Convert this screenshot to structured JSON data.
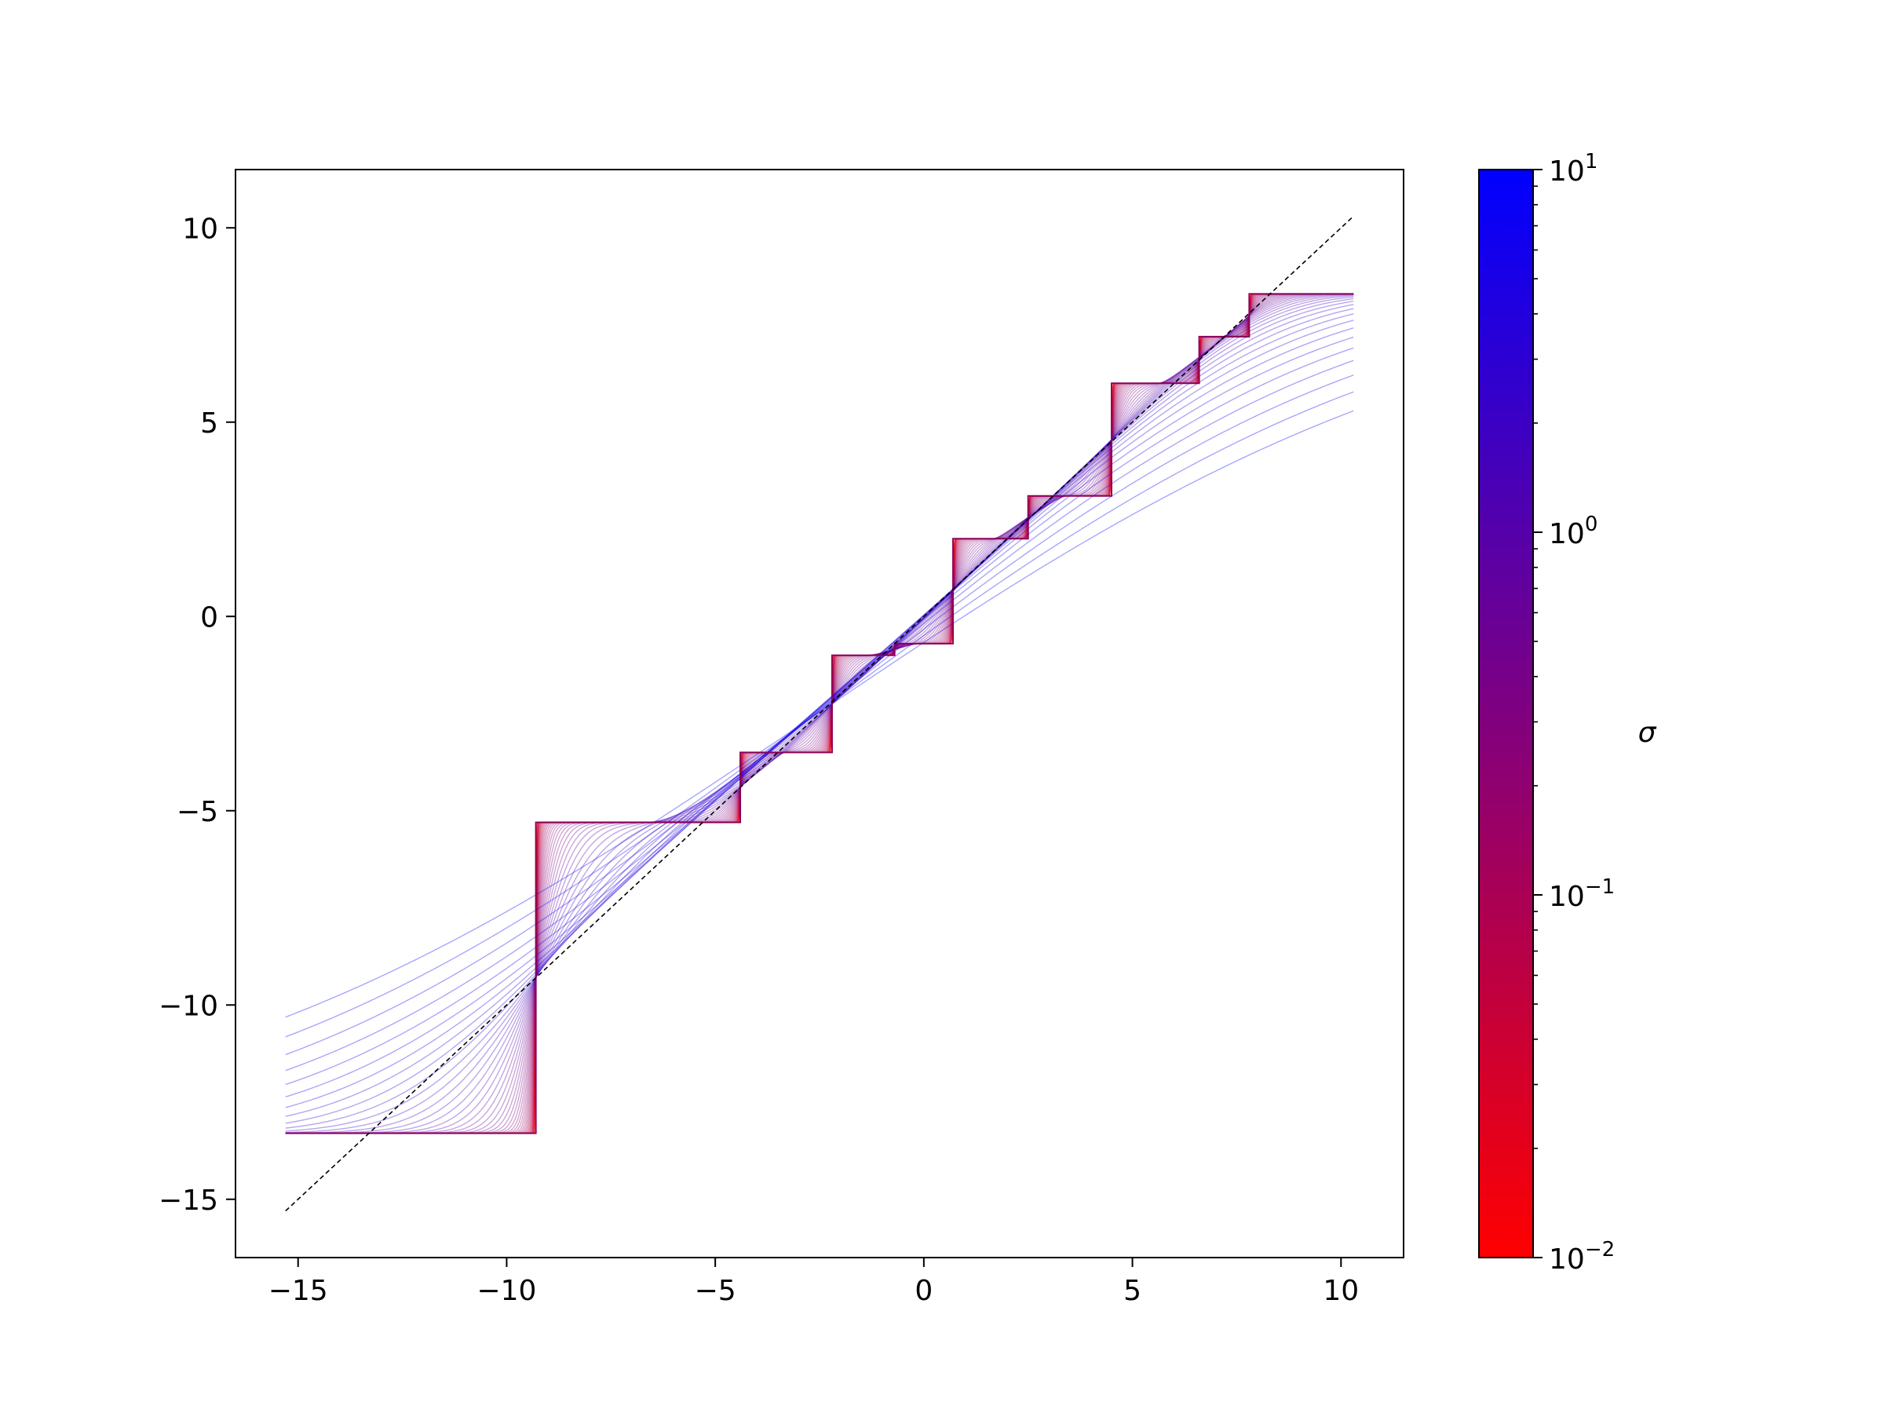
{
  "chart_data": {
    "type": "line",
    "title": "",
    "xlabel": "",
    "ylabel": "",
    "xlim": [
      -16.5,
      11.5
    ],
    "ylim": [
      -16.5,
      11.5
    ],
    "xticks": [
      -15,
      -10,
      -5,
      0,
      5,
      10
    ],
    "yticks": [
      -15,
      -10,
      -5,
      0,
      5,
      10
    ],
    "xtick_labels": [
      "−15",
      "−10",
      "−5",
      "0",
      "5",
      "10"
    ],
    "ytick_labels": [
      "−15",
      "−10",
      "−5",
      "0",
      "5",
      "10"
    ],
    "grid": false,
    "legend": "none",
    "x_range": [
      -15.3,
      10.3
    ],
    "step_function": {
      "description_color": "#8a0058",
      "breakpoints": [
        -9.3,
        -4.4,
        -2.2,
        -0.7,
        0.7,
        2.5,
        4.5,
        6.6,
        7.8
      ],
      "levels": [
        -13.3,
        -5.3,
        -3.5,
        -1.0,
        -0.7,
        2.0,
        3.1,
        6.0,
        7.2,
        8.3
      ]
    },
    "reference_line": {
      "style": "dashed",
      "color": "#000000",
      "x": [
        -15.3,
        10.3
      ],
      "y": [
        -15.3,
        10.3
      ]
    },
    "series_family": {
      "parameter": "σ",
      "sigma_min": 0.01,
      "sigma_max": 10,
      "count": 50,
      "scale": "log"
    },
    "colorbar": {
      "label": "σ",
      "scale": "log",
      "range": [
        0.01,
        10
      ],
      "color_low": "#ff0000",
      "color_high": "#0000ff",
      "tick_values": [
        0.01,
        0.1,
        1,
        10
      ],
      "tick_labels": [
        {
          "base": "10",
          "exp": "−2"
        },
        {
          "base": "10",
          "exp": "−1"
        },
        {
          "base": "10",
          "exp": "0"
        },
        {
          "base": "10",
          "exp": "1"
        }
      ]
    }
  }
}
